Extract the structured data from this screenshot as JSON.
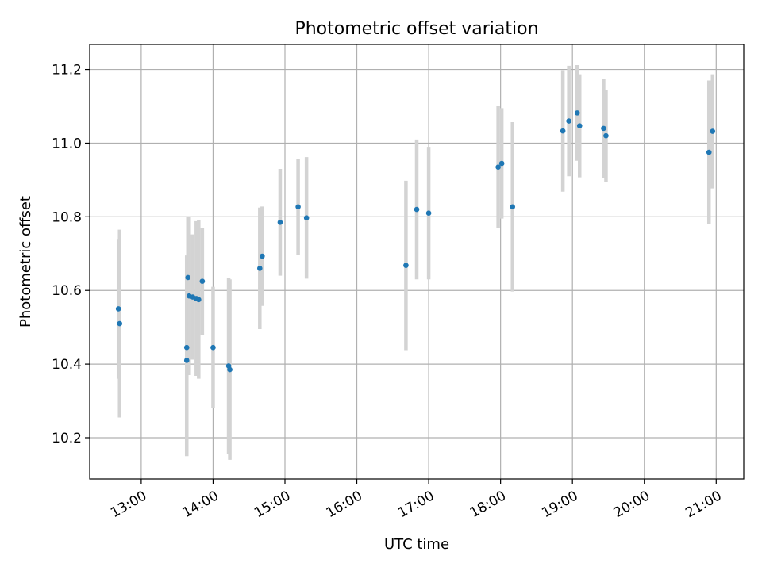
{
  "chart_data": {
    "type": "scatter",
    "title": "Photometric offset variation",
    "xlabel": "UTC time",
    "ylabel": "Photometric offset",
    "xlim": [
      "12:17",
      "21:23"
    ],
    "ylim": [
      10.088,
      11.268
    ],
    "grid": true,
    "x_ticks": [
      "13:00",
      "14:00",
      "15:00",
      "16:00",
      "17:00",
      "18:00",
      "19:00",
      "20:00",
      "21:00"
    ],
    "y_ticks": [
      10.2,
      10.4,
      10.6,
      10.8,
      11.0,
      11.2
    ],
    "y_tick_labels": [
      "10.2",
      "10.4",
      "10.6",
      "10.8",
      "11.0",
      "11.2"
    ],
    "colors": {
      "points": "#1f77b4",
      "errorbars": "#d3d3d3"
    },
    "points": [
      {
        "x": "12:41",
        "y": 10.55,
        "err": 0.19
      },
      {
        "x": "12:42",
        "y": 10.51,
        "err": 0.255
      },
      {
        "x": "13:38",
        "y": 10.41,
        "err": 0.26
      },
      {
        "x": "13:38",
        "y": 10.445,
        "err": 0.25
      },
      {
        "x": "13:39",
        "y": 10.635,
        "err": 0.165
      },
      {
        "x": "13:40",
        "y": 10.585,
        "err": 0.215
      },
      {
        "x": "13:43",
        "y": 10.582,
        "err": 0.17
      },
      {
        "x": "13:46",
        "y": 10.578,
        "err": 0.21
      },
      {
        "x": "13:48",
        "y": 10.575,
        "err": 0.215
      },
      {
        "x": "13:51",
        "y": 10.625,
        "err": 0.145
      },
      {
        "x": "14:00",
        "y": 10.445,
        "err": 0.165
      },
      {
        "x": "14:13",
        "y": 10.395,
        "err": 0.24
      },
      {
        "x": "14:14",
        "y": 10.385,
        "err": 0.245
      },
      {
        "x": "14:39",
        "y": 10.66,
        "err": 0.165
      },
      {
        "x": "14:41",
        "y": 10.693,
        "err": 0.135
      },
      {
        "x": "14:56",
        "y": 10.785,
        "err": 0.145
      },
      {
        "x": "15:11",
        "y": 10.827,
        "err": 0.13
      },
      {
        "x": "15:18",
        "y": 10.797,
        "err": 0.165
      },
      {
        "x": "16:41",
        "y": 10.668,
        "err": 0.23
      },
      {
        "x": "16:50",
        "y": 10.82,
        "err": 0.19
      },
      {
        "x": "17:00",
        "y": 10.81,
        "err": 0.18
      },
      {
        "x": "17:58",
        "y": 10.935,
        "err": 0.165
      },
      {
        "x": "18:01",
        "y": 10.945,
        "err": 0.15
      },
      {
        "x": "18:10",
        "y": 10.827,
        "err": 0.23
      },
      {
        "x": "18:52",
        "y": 11.033,
        "err": 0.165
      },
      {
        "x": "18:57",
        "y": 11.06,
        "err": 0.15
      },
      {
        "x": "19:04",
        "y": 11.082,
        "err": 0.13
      },
      {
        "x": "19:06",
        "y": 11.047,
        "err": 0.14
      },
      {
        "x": "19:26",
        "y": 11.04,
        "err": 0.135
      },
      {
        "x": "19:28",
        "y": 11.02,
        "err": 0.125
      },
      {
        "x": "20:54",
        "y": 10.975,
        "err": 0.195
      },
      {
        "x": "20:57",
        "y": 11.032,
        "err": 0.155
      }
    ]
  }
}
